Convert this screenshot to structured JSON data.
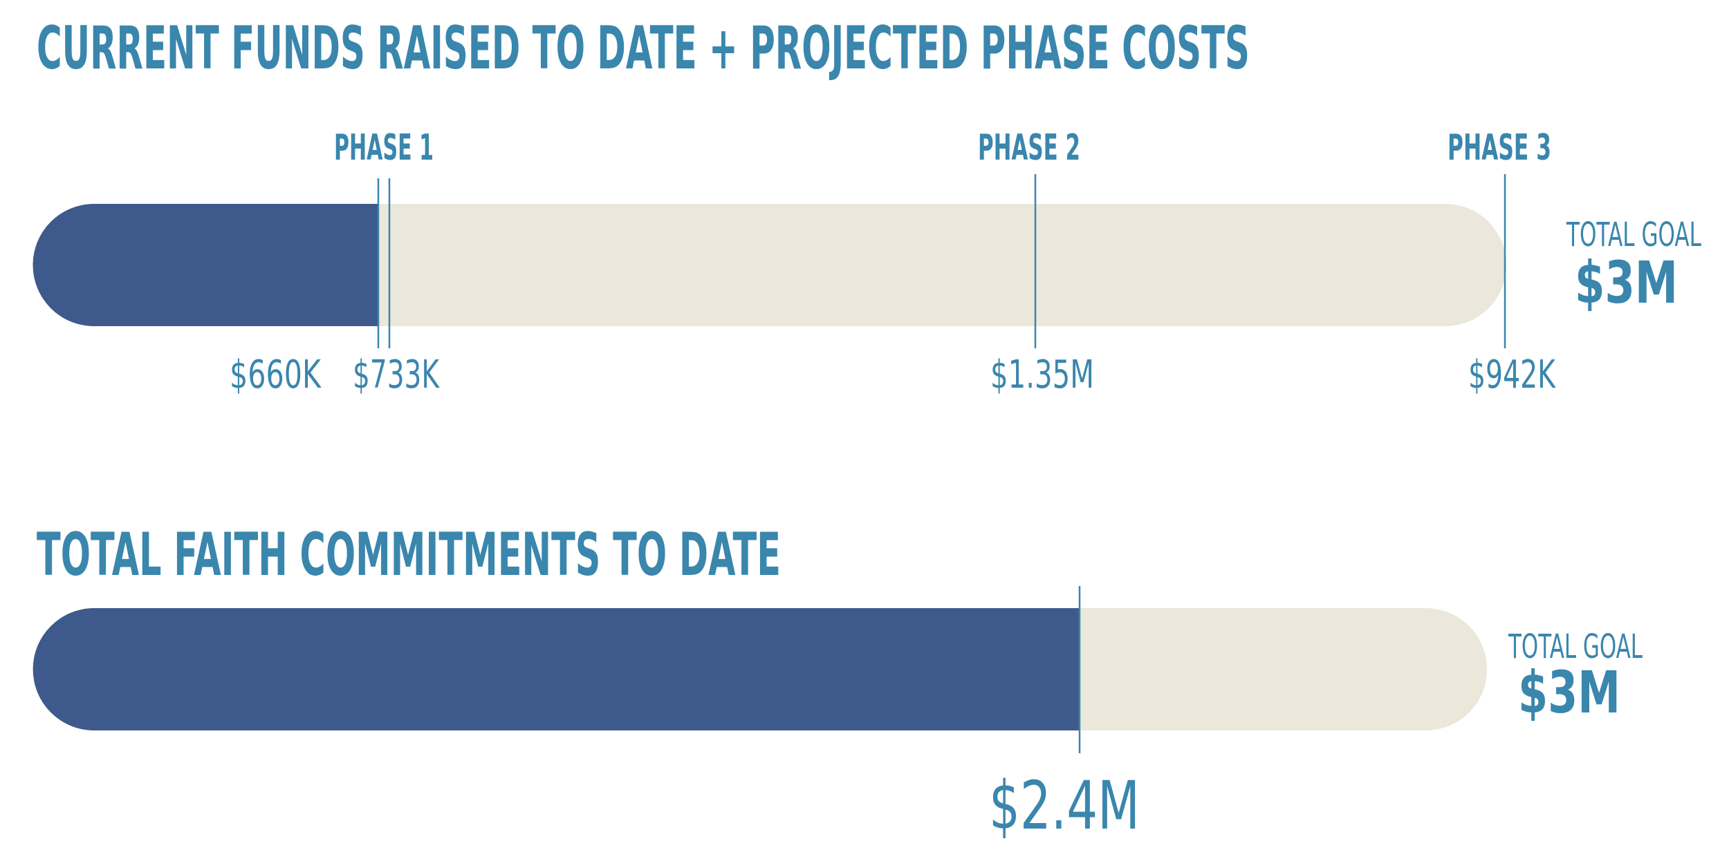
{
  "funds": {
    "title": "CURRENT FUNDS RAISED TO DATE + PROJECTED PHASE COSTS",
    "phases": [
      "PHASE 1",
      "PHASE 2",
      "PHASE 3"
    ],
    "amounts": [
      "$660K",
      "$733K",
      "$1.35M",
      "$942K"
    ],
    "goal_label": "TOTAL GOAL",
    "goal": "$3M"
  },
  "commitments": {
    "title": "TOTAL FAITH COMMITMENTS TO DATE",
    "goal_label": "TOTAL GOAL",
    "goal": "$3M",
    "amount": "$2.4M"
  }
}
